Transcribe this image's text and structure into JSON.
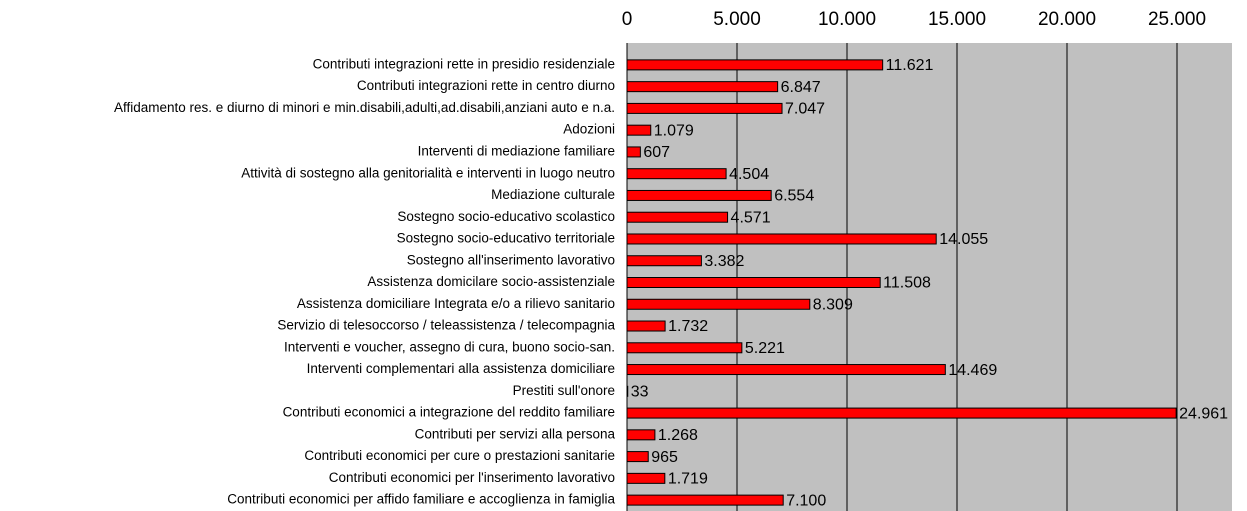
{
  "chart_data": {
    "type": "barh",
    "categories": [
      "Contributi integrazioni rette in presidio residenziale",
      "Contributi integrazioni rette in centro diurno",
      "Affidamento res. e diurno di  minori e min.disabili,adulti,ad.disabili,anziani auto e n.a.",
      "Adozioni",
      "Interventi di mediazione familiare",
      "Attività di sostegno alla genitorialità e interventi in luogo neutro",
      "Mediazione culturale",
      "Sostegno socio-educativo scolastico",
      "Sostegno socio-educativo territoriale",
      "Sostegno all'inserimento lavorativo",
      "Assistenza domicilare socio-assistenziale",
      "Assistenza domiciliare Integrata e/o a rilievo sanitario",
      "Servizio di telesoccorso / teleassistenza / telecompagnia",
      "Interventi  e voucher, assegno di cura, buono socio-san.",
      "Interventi complementari alla assistenza domiciliare",
      "Prestiti sull'onore",
      "Contributi economici a integrazione del reddito familiare",
      "Contributi per servizi alla persona",
      "Contributi economici per cure o prestazioni sanitarie",
      "Contributi economici per l'inserimento lavorativo",
      "Contributi economici per affido familiare e accoglienza in famiglia"
    ],
    "values": [
      11621,
      6847,
      7047,
      1079,
      607,
      4504,
      6554,
      4571,
      14055,
      3382,
      11508,
      8309,
      1732,
      5221,
      14469,
      33,
      24961,
      1268,
      965,
      1719,
      7100
    ],
    "value_labels": [
      "11.621",
      "6.847",
      "7.047",
      "1.079",
      "607",
      "4.504",
      "6.554",
      "4.571",
      "14.055",
      "3.382",
      "11.508",
      "8.309",
      "1.732",
      "5.221",
      "14.469",
      "33",
      "24.961",
      "1.268",
      "965",
      "1.719",
      "7.100"
    ],
    "color": "#ff0000",
    "xlim": [
      0,
      27500
    ],
    "xticks": [
      0,
      {
        "value": 5000,
        "label": "5.000"
      },
      {
        "value": 10000,
        "label": "10.000"
      },
      {
        "value": 15000,
        "label": "15.000"
      },
      {
        "value": 20000,
        "label": "20.000"
      },
      {
        "value": 25000,
        "label": "25.000"
      }
    ],
    "grid": true
  }
}
